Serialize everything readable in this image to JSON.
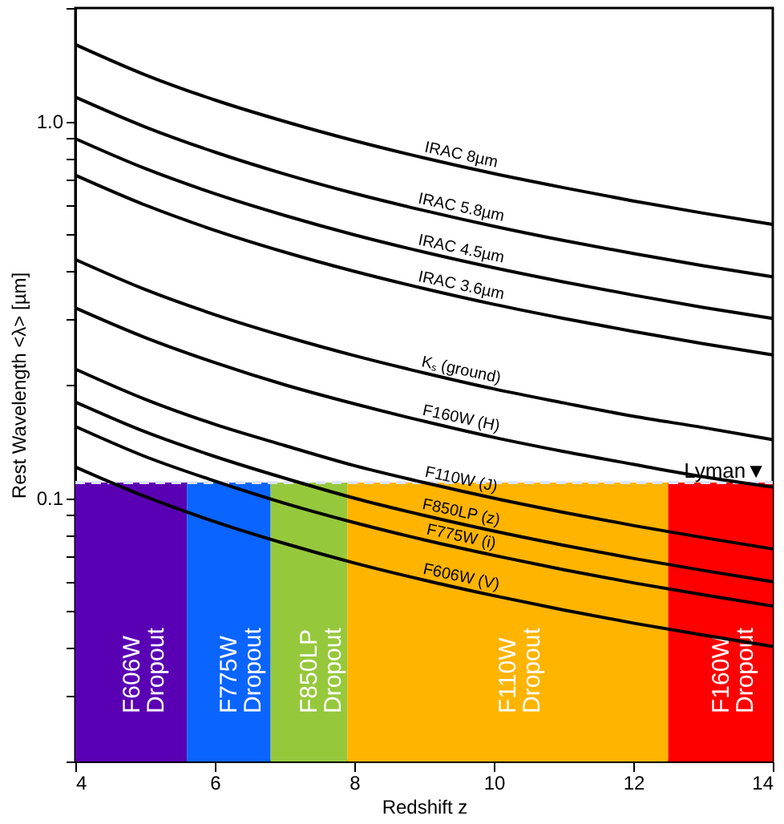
{
  "chart_data": {
    "type": "line",
    "xlabel": "Redshift z",
    "ylabel": "Rest Wavelength <λ> [µm]",
    "x": [
      4,
      5,
      6,
      7,
      8,
      9,
      10,
      11,
      12,
      13,
      14
    ],
    "xlim": [
      4,
      14
    ],
    "xticks": [
      4,
      6,
      8,
      10,
      12,
      14
    ],
    "ylim": [
      0.02,
      2
    ],
    "log": "y",
    "yticks": [
      {
        "value": 0.02,
        "label": null
      },
      {
        "value": 0.03,
        "label": null
      },
      {
        "value": 0.04,
        "label": null
      },
      {
        "value": 0.05,
        "label": null
      },
      {
        "value": 0.06,
        "label": null
      },
      {
        "value": 0.07,
        "label": null
      },
      {
        "value": 0.08,
        "label": null
      },
      {
        "value": 0.09,
        "label": null
      },
      {
        "value": 0.1,
        "label": "0.1"
      },
      {
        "value": 0.2,
        "label": null
      },
      {
        "value": 0.3,
        "label": null
      },
      {
        "value": 0.4,
        "label": null
      },
      {
        "value": 0.5,
        "label": null
      },
      {
        "value": 0.6,
        "label": null
      },
      {
        "value": 0.7,
        "label": null
      },
      {
        "value": 0.8,
        "label": null
      },
      {
        "value": 0.9,
        "label": null
      },
      {
        "value": 1,
        "label": "1.0"
      },
      {
        "value": 2,
        "label": null
      }
    ],
    "grid": false,
    "legend": false,
    "marker": "none",
    "line_style": "solid",
    "series": [
      {
        "name": "IRAC 8µm",
        "color": "#000000",
        "values": [
          1.6,
          1.33,
          1.14,
          1.0,
          0.889,
          0.8,
          0.727,
          0.667,
          0.615,
          0.571,
          0.533
        ]
      },
      {
        "name": "IRAC 5.8µm",
        "color": "#000000",
        "values": [
          1.16,
          0.967,
          0.829,
          0.725,
          0.644,
          0.58,
          0.527,
          0.483,
          0.446,
          0.414,
          0.387
        ]
      },
      {
        "name": "IRAC 4.5µm",
        "color": "#000000",
        "values": [
          0.9,
          0.75,
          0.643,
          0.563,
          0.5,
          0.45,
          0.409,
          0.375,
          0.346,
          0.321,
          0.3
        ]
      },
      {
        "name": "IRAC 3.6µm",
        "color": "#000000",
        "values": [
          0.72,
          0.6,
          0.514,
          0.45,
          0.4,
          0.36,
          0.327,
          0.3,
          0.277,
          0.257,
          0.24
        ]
      },
      {
        "name": "Kₛ (ground)",
        "color": "#000000",
        "values": [
          0.43,
          0.358,
          0.307,
          0.269,
          0.239,
          0.215,
          0.195,
          0.179,
          0.165,
          0.154,
          0.143
        ]
      },
      {
        "name": "F160W (H)",
        "color": "#000000",
        "values": [
          0.32,
          0.267,
          0.229,
          0.2,
          0.178,
          0.16,
          0.145,
          0.133,
          0.123,
          0.114,
          0.107
        ]
      },
      {
        "name": "F110W (J)",
        "color": "#000000",
        "values": [
          0.22,
          0.183,
          0.157,
          0.138,
          0.122,
          0.11,
          0.1,
          0.0917,
          0.0846,
          0.0786,
          0.0733
        ]
      },
      {
        "name": "F850LP (z)",
        "color": "#000000",
        "values": [
          0.18,
          0.15,
          0.129,
          0.113,
          0.1,
          0.09,
          0.0818,
          0.075,
          0.0692,
          0.0643,
          0.06
        ]
      },
      {
        "name": "F775W (i)",
        "color": "#000000",
        "values": [
          0.155,
          0.129,
          0.111,
          0.0969,
          0.0861,
          0.0775,
          0.0705,
          0.0646,
          0.0596,
          0.0554,
          0.0517
        ]
      },
      {
        "name": "F606W (V)",
        "color": "#000000",
        "values": [
          0.121,
          0.101,
          0.0866,
          0.0758,
          0.0673,
          0.0606,
          0.0551,
          0.0505,
          0.0466,
          0.0433,
          0.0404
        ]
      }
    ],
    "ref_lines": [
      {
        "axis": "y",
        "value": 0.11,
        "label": "Lyman▼",
        "color": "#dde4ff",
        "line_style": "dashed"
      }
    ],
    "bands": [
      {
        "axis": "x",
        "from": 4,
        "to": 5.6,
        "label": "F606W Dropout",
        "color": "#5a00b4"
      },
      {
        "axis": "x",
        "from": 5.6,
        "to": 6.8,
        "label": "F775W Dropout",
        "color": "#0a64ff"
      },
      {
        "axis": "x",
        "from": 6.8,
        "to": 7.9,
        "label": "F850LP Dropout",
        "color": "#96c83c"
      },
      {
        "axis": "x",
        "from": 7.9,
        "to": 12.5,
        "label": "F110W Dropout",
        "color": "#ffb400"
      },
      {
        "axis": "x",
        "from": 12.5,
        "to": 14,
        "label": "F160W Dropout",
        "color": "#ff0000"
      }
    ]
  }
}
